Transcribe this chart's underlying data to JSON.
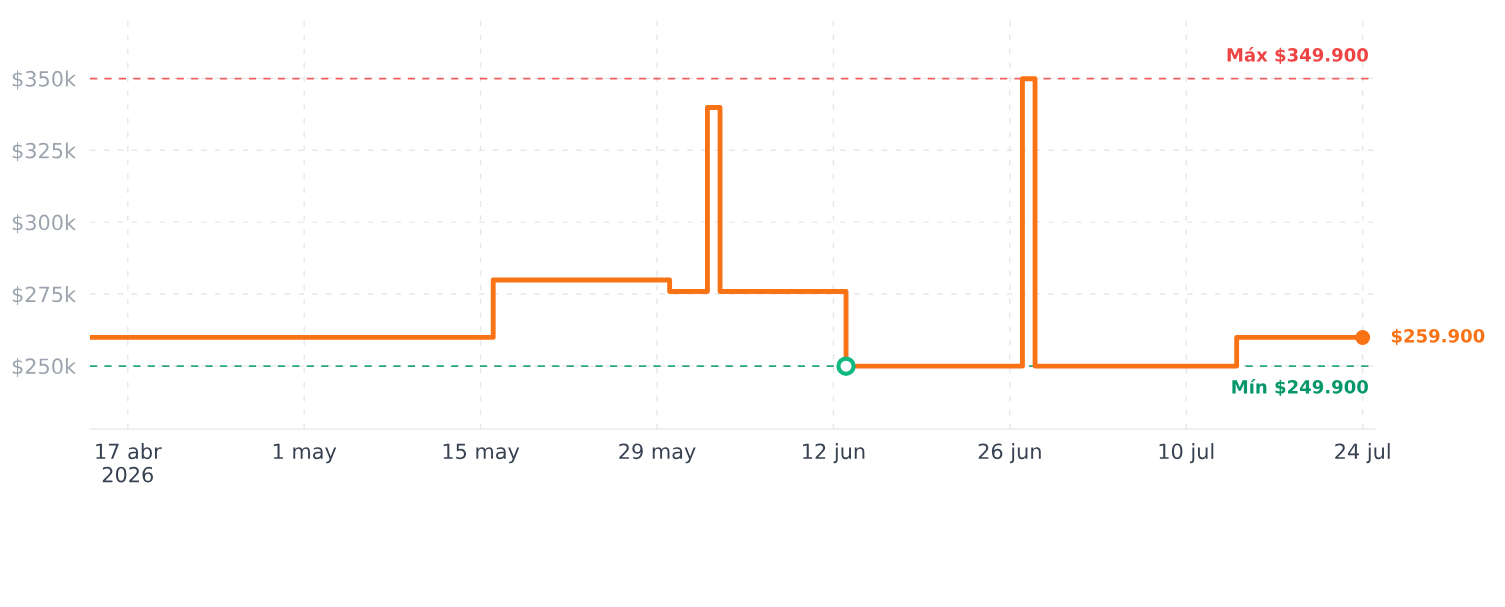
{
  "chart_data": {
    "type": "step",
    "x": [
      "2026-04-14",
      "2026-05-16",
      "2026-05-30",
      "2026-06-02",
      "2026-06-03",
      "2026-06-13",
      "2026-06-27",
      "2026-06-28",
      "2026-07-14",
      "2026-07-24"
    ],
    "series": [
      {
        "color": "#f97316",
        "values": [
          259900,
          279900,
          275900,
          339900,
          275900,
          249900,
          349900,
          249900,
          259900,
          259900
        ]
      },
      {
        "type": "scatter",
        "color": "#10b981",
        "x": [
          "2026-06-13"
        ],
        "values": [
          249900
        ],
        "marker": "circle"
      },
      {
        "type": "scatter",
        "color": "#f97316",
        "x": [
          "2026-07-24"
        ],
        "values": [
          259900
        ],
        "marker": "circle"
      }
    ],
    "xlim": [
      "2026-04-14",
      "2026-07-25"
    ],
    "xticks": [
      {
        "value": "2026-04-17",
        "label": "17 abr\n2026"
      },
      {
        "value": "2026-05-01",
        "label": "1 may"
      },
      {
        "value": "2026-05-15",
        "label": "15 may"
      },
      {
        "value": "2026-05-29",
        "label": "29 may"
      },
      {
        "value": "2026-06-12",
        "label": "12 jun"
      },
      {
        "value": "2026-06-26",
        "label": "26 jun"
      },
      {
        "value": "2026-07-10",
        "label": "10 jul"
      },
      {
        "value": "2026-07-24",
        "label": "24 jul"
      }
    ],
    "ylim": [
      228000,
      372000
    ],
    "yticks": [
      {
        "value": 250000,
        "label": "$250k"
      },
      {
        "value": 275000,
        "label": "$275k"
      },
      {
        "value": 300000,
        "label": "$300k"
      },
      {
        "value": 325000,
        "label": "$325k"
      },
      {
        "value": 350000,
        "label": "$350k"
      }
    ],
    "ref_lines": [
      {
        "axis": "y",
        "value": 349900,
        "label": "Máx $349.900",
        "color": "#ef4444",
        "line_style": "dashed"
      },
      {
        "axis": "y",
        "value": 249900,
        "label": "Mín $249.900",
        "color": "#059669",
        "line_style": "dashed"
      }
    ],
    "annotations": [
      {
        "text": "$259.900",
        "x": "2026-07-24",
        "y": 259900
      }
    ],
    "grid": true
  }
}
